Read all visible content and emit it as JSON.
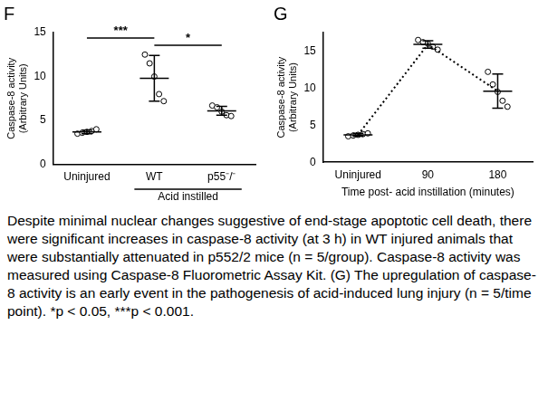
{
  "chart_data": [
    {
      "type": "scatter",
      "title": "F",
      "y_label": [
        "Caspase-8 activity",
        "(Arbitrary Units)"
      ],
      "categories": [
        "Uninjured",
        "WT",
        "p55⁻/⁻"
      ],
      "points": [
        [
          3.5,
          3.6,
          3.7,
          3.8,
          4.0
        ],
        [
          12.5,
          11.5,
          10.0,
          8.0,
          7.2
        ],
        [
          6.7,
          6.5,
          6.0,
          5.6,
          5.5
        ]
      ],
      "means": [
        3.7,
        9.8,
        6.1
      ],
      "errors": [
        0.2,
        2.6,
        0.5
      ],
      "color": "#000000",
      "marker": "circle",
      "ylim": [
        0,
        15
      ],
      "yticks": [
        0,
        5,
        10,
        15
      ],
      "grid": false,
      "x_group_label": {
        "text": "Acid instilled",
        "categories": [
          "WT",
          "p55⁻/⁻"
        ]
      },
      "annotations": [
        {
          "text": "***",
          "between": [
            "Uninjured",
            "WT"
          ]
        },
        {
          "text": "*",
          "between": [
            "WT",
            "p55⁻/⁻"
          ]
        }
      ]
    },
    {
      "type": "scatter",
      "title": "G",
      "y_label": [
        "Caspase-8 activity",
        "(Arbitrary Units)"
      ],
      "x_label": "Time post- acid instillation (minutes)",
      "categories": [
        "Uninjured",
        "90",
        "180"
      ],
      "points": [
        [
          3.5,
          3.6,
          3.7,
          3.8,
          3.9
        ],
        [
          16.5,
          16.2,
          16.0,
          15.6,
          15.2
        ],
        [
          12.2,
          10.5,
          9.5,
          8.3,
          7.5
        ]
      ],
      "means": [
        3.7,
        15.9,
        9.6
      ],
      "errors": [
        0.2,
        0.5,
        2.3
      ],
      "color": "#000000",
      "marker": "circle",
      "line_style": "dotted",
      "ylim": [
        0,
        17.5
      ],
      "yticks": [
        0,
        5,
        10,
        15
      ],
      "grid": false
    }
  ],
  "caption": "Despite minimal nuclear changes suggestive of end-stage apoptotic cell death, there were significant increases in caspase-8 activity (at 3 h) in WT injured animals that were substantially attenuated in p552/2 mice (n = 5/group). Caspase-8 activity was measured using Caspase-8 Fluorometric Assay Kit. (G) The upregulation of caspase-8 activity is an early event in the pathogenesis of acid-induced lung injury (n = 5/time point). *p < 0.05, ***p < 0.001."
}
